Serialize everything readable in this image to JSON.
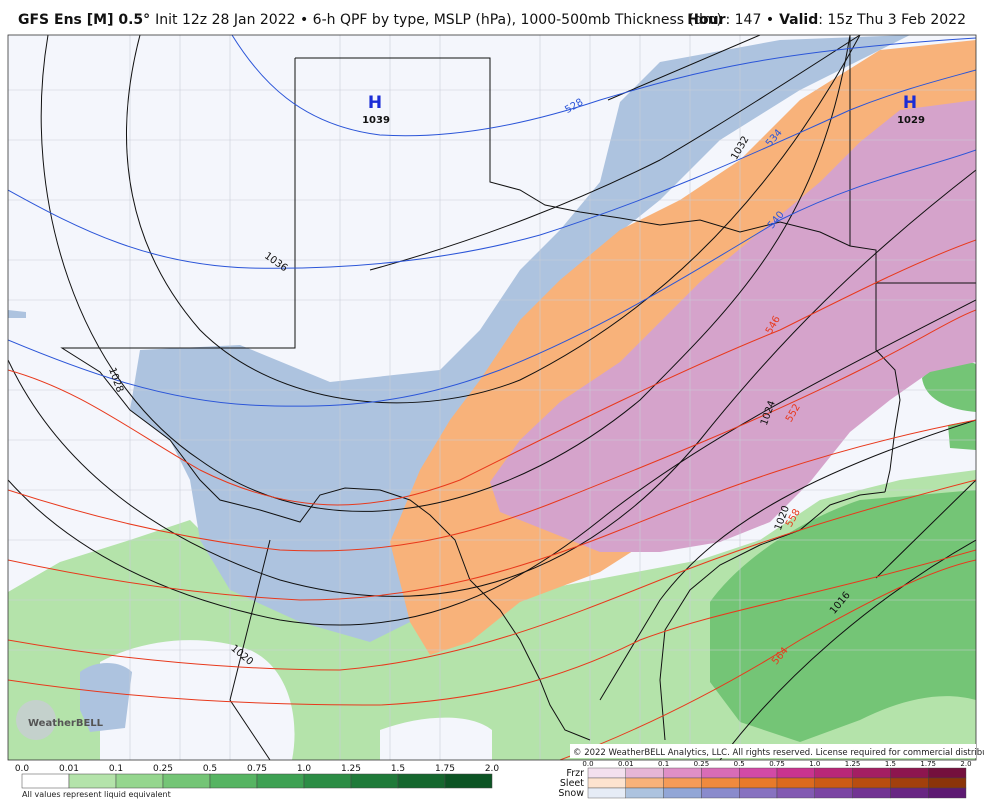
{
  "header": {
    "model": "GFS Ens [M] 0.5°",
    "description": "Init 12z 28 Jan 2022 • 6-h QPF by type, MSLP (hPa), 1000-500mb Thickness (dm)",
    "hour_label": "Hour",
    "hour": ": 147 •",
    "valid_label": "Valid",
    "valid": ": 15z Thu 3 Feb 2022"
  },
  "map": {
    "pressure_centers": [
      {
        "symbol": "H",
        "value": "1039"
      },
      {
        "symbol": "H",
        "value": "1029"
      }
    ],
    "isobar_labels": [
      "1032",
      "1036",
      "1028",
      "1024",
      "1020",
      "1020",
      "1016"
    ],
    "thickness_labels": [
      "528",
      "534",
      "540",
      "546",
      "552",
      "558",
      "564"
    ],
    "logo": "WeatherBELL",
    "copyright": "© 2022 WeatherBELL Analytics, LLC. All rights reserved. License required for commercial distribution."
  },
  "legend": {
    "rain": {
      "ticks": [
        "0.0",
        "0.01",
        "0.1",
        "0.25",
        "0.5",
        "0.75",
        "1.0",
        "1.25",
        "1.5",
        "1.75",
        "2.0"
      ],
      "note": "All values represent liquid equivalent"
    },
    "ptype": {
      "rows": [
        "Frzr",
        "Sleet",
        "Snow"
      ],
      "ticks": [
        "0.0",
        "0.01",
        "0.1",
        "0.25",
        "0.5",
        "0.75",
        "1.0",
        "1.25",
        "1.5",
        "1.75",
        "2.0"
      ]
    }
  }
}
